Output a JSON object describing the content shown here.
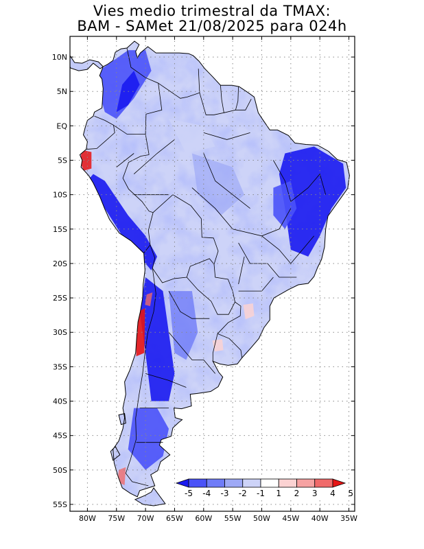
{
  "title": {
    "line1": "Vies medio trimestral da TMAX:",
    "line2": "BAM - SAMet 21/08/2025  para 024h"
  },
  "map": {
    "lon_range": [
      -83,
      -34
    ],
    "lat_range": [
      -56,
      13
    ],
    "lon_ticks": [
      {
        "value": -80,
        "label": "80W"
      },
      {
        "value": -75,
        "label": "75W"
      },
      {
        "value": -70,
        "label": "70W"
      },
      {
        "value": -65,
        "label": "65W"
      },
      {
        "value": -60,
        "label": "60W"
      },
      {
        "value": -55,
        "label": "55W"
      },
      {
        "value": -50,
        "label": "50W"
      },
      {
        "value": -45,
        "label": "45W"
      },
      {
        "value": -40,
        "label": "40W"
      },
      {
        "value": -35,
        "label": "35W"
      }
    ],
    "lat_ticks": [
      {
        "value": 10,
        "label": "10N"
      },
      {
        "value": 5,
        "label": "5N"
      },
      {
        "value": 0,
        "label": "EQ"
      },
      {
        "value": -5,
        "label": "5S"
      },
      {
        "value": -10,
        "label": "10S"
      },
      {
        "value": -15,
        "label": "15S"
      },
      {
        "value": -20,
        "label": "20S"
      },
      {
        "value": -25,
        "label": "25S"
      },
      {
        "value": -30,
        "label": "30S"
      },
      {
        "value": -35,
        "label": "35S"
      },
      {
        "value": -40,
        "label": "40S"
      },
      {
        "value": -45,
        "label": "45S"
      },
      {
        "value": -50,
        "label": "50S"
      },
      {
        "value": -55,
        "label": "55S"
      }
    ]
  },
  "legend": {
    "colors": [
      "#1a1af0",
      "#4a52f8",
      "#6f7cf8",
      "#9ea9f6",
      "#cdd3f8",
      "#ffffff",
      "#fbd2d2",
      "#f6a2a2",
      "#f06a6a",
      "#e61414"
    ],
    "labels": [
      "-5",
      "-4",
      "-3",
      "-2",
      "-1",
      "1",
      "2",
      "3",
      "4",
      "5"
    ]
  },
  "colors": {
    "grid": "#888888",
    "border": "#000000"
  }
}
